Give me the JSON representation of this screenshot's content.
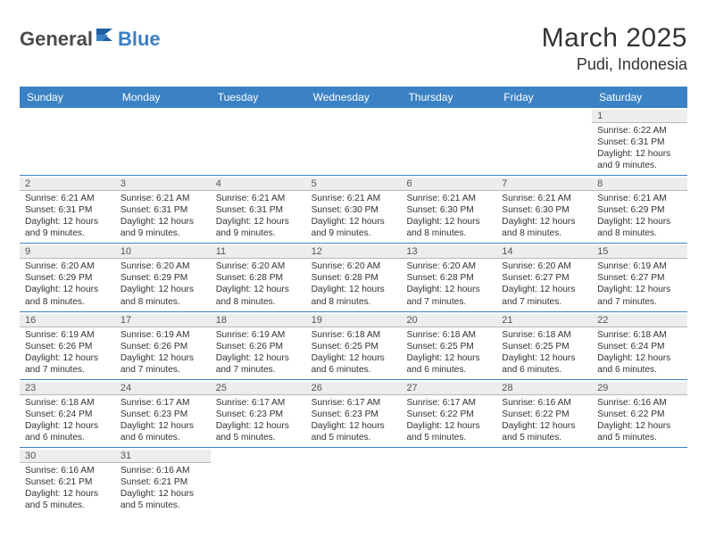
{
  "brand": {
    "part1": "General",
    "part2": "Blue"
  },
  "colors": {
    "header_bg": "#3b82c4",
    "header_text": "#ffffff",
    "daynum_bg": "#eceded",
    "daynum_border": "#b7b7b7",
    "week_border": "#3b82c4",
    "body_text": "#333333",
    "logo_gray": "#4b4b4b",
    "logo_blue": "#3b7fc4"
  },
  "title": "March 2025",
  "location": "Pudi, Indonesia",
  "dow": [
    "Sunday",
    "Monday",
    "Tuesday",
    "Wednesday",
    "Thursday",
    "Friday",
    "Saturday"
  ],
  "weeks": [
    [
      {
        "blank": true
      },
      {
        "blank": true
      },
      {
        "blank": true
      },
      {
        "blank": true
      },
      {
        "blank": true
      },
      {
        "blank": true
      },
      {
        "day": "1",
        "sunrise": "Sunrise: 6:22 AM",
        "sunset": "Sunset: 6:31 PM",
        "daylight": "Daylight: 12 hours and 9 minutes."
      }
    ],
    [
      {
        "day": "2",
        "sunrise": "Sunrise: 6:21 AM",
        "sunset": "Sunset: 6:31 PM",
        "daylight": "Daylight: 12 hours and 9 minutes."
      },
      {
        "day": "3",
        "sunrise": "Sunrise: 6:21 AM",
        "sunset": "Sunset: 6:31 PM",
        "daylight": "Daylight: 12 hours and 9 minutes."
      },
      {
        "day": "4",
        "sunrise": "Sunrise: 6:21 AM",
        "sunset": "Sunset: 6:31 PM",
        "daylight": "Daylight: 12 hours and 9 minutes."
      },
      {
        "day": "5",
        "sunrise": "Sunrise: 6:21 AM",
        "sunset": "Sunset: 6:30 PM",
        "daylight": "Daylight: 12 hours and 9 minutes."
      },
      {
        "day": "6",
        "sunrise": "Sunrise: 6:21 AM",
        "sunset": "Sunset: 6:30 PM",
        "daylight": "Daylight: 12 hours and 8 minutes."
      },
      {
        "day": "7",
        "sunrise": "Sunrise: 6:21 AM",
        "sunset": "Sunset: 6:30 PM",
        "daylight": "Daylight: 12 hours and 8 minutes."
      },
      {
        "day": "8",
        "sunrise": "Sunrise: 6:21 AM",
        "sunset": "Sunset: 6:29 PM",
        "daylight": "Daylight: 12 hours and 8 minutes."
      }
    ],
    [
      {
        "day": "9",
        "sunrise": "Sunrise: 6:20 AM",
        "sunset": "Sunset: 6:29 PM",
        "daylight": "Daylight: 12 hours and 8 minutes."
      },
      {
        "day": "10",
        "sunrise": "Sunrise: 6:20 AM",
        "sunset": "Sunset: 6:29 PM",
        "daylight": "Daylight: 12 hours and 8 minutes."
      },
      {
        "day": "11",
        "sunrise": "Sunrise: 6:20 AM",
        "sunset": "Sunset: 6:28 PM",
        "daylight": "Daylight: 12 hours and 8 minutes."
      },
      {
        "day": "12",
        "sunrise": "Sunrise: 6:20 AM",
        "sunset": "Sunset: 6:28 PM",
        "daylight": "Daylight: 12 hours and 8 minutes."
      },
      {
        "day": "13",
        "sunrise": "Sunrise: 6:20 AM",
        "sunset": "Sunset: 6:28 PM",
        "daylight": "Daylight: 12 hours and 7 minutes."
      },
      {
        "day": "14",
        "sunrise": "Sunrise: 6:20 AM",
        "sunset": "Sunset: 6:27 PM",
        "daylight": "Daylight: 12 hours and 7 minutes."
      },
      {
        "day": "15",
        "sunrise": "Sunrise: 6:19 AM",
        "sunset": "Sunset: 6:27 PM",
        "daylight": "Daylight: 12 hours and 7 minutes."
      }
    ],
    [
      {
        "day": "16",
        "sunrise": "Sunrise: 6:19 AM",
        "sunset": "Sunset: 6:26 PM",
        "daylight": "Daylight: 12 hours and 7 minutes."
      },
      {
        "day": "17",
        "sunrise": "Sunrise: 6:19 AM",
        "sunset": "Sunset: 6:26 PM",
        "daylight": "Daylight: 12 hours and 7 minutes."
      },
      {
        "day": "18",
        "sunrise": "Sunrise: 6:19 AM",
        "sunset": "Sunset: 6:26 PM",
        "daylight": "Daylight: 12 hours and 7 minutes."
      },
      {
        "day": "19",
        "sunrise": "Sunrise: 6:18 AM",
        "sunset": "Sunset: 6:25 PM",
        "daylight": "Daylight: 12 hours and 6 minutes."
      },
      {
        "day": "20",
        "sunrise": "Sunrise: 6:18 AM",
        "sunset": "Sunset: 6:25 PM",
        "daylight": "Daylight: 12 hours and 6 minutes."
      },
      {
        "day": "21",
        "sunrise": "Sunrise: 6:18 AM",
        "sunset": "Sunset: 6:25 PM",
        "daylight": "Daylight: 12 hours and 6 minutes."
      },
      {
        "day": "22",
        "sunrise": "Sunrise: 6:18 AM",
        "sunset": "Sunset: 6:24 PM",
        "daylight": "Daylight: 12 hours and 6 minutes."
      }
    ],
    [
      {
        "day": "23",
        "sunrise": "Sunrise: 6:18 AM",
        "sunset": "Sunset: 6:24 PM",
        "daylight": "Daylight: 12 hours and 6 minutes."
      },
      {
        "day": "24",
        "sunrise": "Sunrise: 6:17 AM",
        "sunset": "Sunset: 6:23 PM",
        "daylight": "Daylight: 12 hours and 6 minutes."
      },
      {
        "day": "25",
        "sunrise": "Sunrise: 6:17 AM",
        "sunset": "Sunset: 6:23 PM",
        "daylight": "Daylight: 12 hours and 5 minutes."
      },
      {
        "day": "26",
        "sunrise": "Sunrise: 6:17 AM",
        "sunset": "Sunset: 6:23 PM",
        "daylight": "Daylight: 12 hours and 5 minutes."
      },
      {
        "day": "27",
        "sunrise": "Sunrise: 6:17 AM",
        "sunset": "Sunset: 6:22 PM",
        "daylight": "Daylight: 12 hours and 5 minutes."
      },
      {
        "day": "28",
        "sunrise": "Sunrise: 6:16 AM",
        "sunset": "Sunset: 6:22 PM",
        "daylight": "Daylight: 12 hours and 5 minutes."
      },
      {
        "day": "29",
        "sunrise": "Sunrise: 6:16 AM",
        "sunset": "Sunset: 6:22 PM",
        "daylight": "Daylight: 12 hours and 5 minutes."
      }
    ],
    [
      {
        "day": "30",
        "sunrise": "Sunrise: 6:16 AM",
        "sunset": "Sunset: 6:21 PM",
        "daylight": "Daylight: 12 hours and 5 minutes."
      },
      {
        "day": "31",
        "sunrise": "Sunrise: 6:16 AM",
        "sunset": "Sunset: 6:21 PM",
        "daylight": "Daylight: 12 hours and 5 minutes."
      },
      {
        "blank": true
      },
      {
        "blank": true
      },
      {
        "blank": true
      },
      {
        "blank": true
      },
      {
        "blank": true
      }
    ]
  ]
}
